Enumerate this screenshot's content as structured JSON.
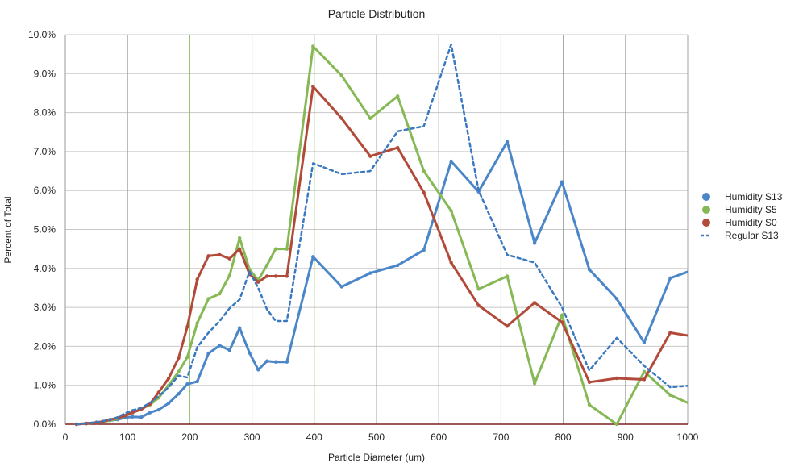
{
  "chart_data": {
    "type": "line",
    "title": "Particle Distribution",
    "xlabel": "Particle Diameter (um)",
    "ylabel": "Percent of Total",
    "xlim": [
      0,
      1000
    ],
    "ylim": [
      0,
      10
    ],
    "xticks": [
      "0",
      "100",
      "200",
      "300",
      "400",
      "500",
      "600",
      "700",
      "800",
      "900",
      "1000"
    ],
    "yticks": [
      "0.0%",
      "1.0%",
      "2.0%",
      "3.0%",
      "4.0%",
      "5.0%",
      "6.0%",
      "7.0%",
      "8.0%",
      "9.0%",
      "10.0%"
    ],
    "grid": true,
    "legend_position": "right",
    "series": [
      {
        "name": "Humidity S13",
        "color": "#4a86c8",
        "style": "solid",
        "x": [
          18,
          34,
          50,
          60,
          72,
          84,
          96,
          108,
          122,
          136,
          150,
          166,
          182,
          196,
          212,
          230,
          248,
          264,
          280,
          296,
          310,
          324,
          338,
          356,
          398,
          444,
          490,
          534,
          576,
          620,
          664,
          710,
          754,
          798,
          842,
          886,
          930,
          972,
          1010
        ],
        "y": [
          0.0,
          0.02,
          0.05,
          0.06,
          0.1,
          0.12,
          0.17,
          0.19,
          0.18,
          0.3,
          0.37,
          0.54,
          0.78,
          1.03,
          1.1,
          1.82,
          2.02,
          1.9,
          2.47,
          1.83,
          1.4,
          1.62,
          1.6,
          1.6,
          4.3,
          3.53,
          3.88,
          4.08,
          4.47,
          6.75,
          5.97,
          7.25,
          4.65,
          6.22,
          3.97,
          3.22,
          2.1,
          3.75,
          3.97
        ]
      },
      {
        "name": "Humidity S5",
        "color": "#86b955",
        "style": "solid",
        "x": [
          18,
          34,
          50,
          60,
          72,
          84,
          96,
          108,
          122,
          136,
          150,
          166,
          182,
          196,
          212,
          230,
          248,
          264,
          280,
          296,
          310,
          324,
          338,
          356,
          398,
          444,
          490,
          534,
          576,
          620,
          664,
          710,
          754,
          798,
          842,
          886,
          930,
          972,
          1010
        ],
        "y": [
          0.0,
          0.02,
          0.04,
          0.06,
          0.1,
          0.14,
          0.22,
          0.3,
          0.4,
          0.5,
          0.68,
          1.0,
          1.35,
          1.72,
          2.6,
          3.22,
          3.35,
          3.82,
          4.78,
          3.97,
          3.7,
          4.08,
          4.5,
          4.5,
          9.7,
          8.95,
          7.85,
          8.42,
          6.5,
          5.48,
          3.47,
          3.8,
          1.05,
          2.8,
          0.5,
          0.0,
          1.35,
          0.75,
          0.48
        ]
      },
      {
        "name": "Humidity S0",
        "color": "#b24a3a",
        "style": "solid",
        "x": [
          18,
          34,
          50,
          60,
          72,
          84,
          96,
          108,
          122,
          136,
          150,
          166,
          182,
          196,
          212,
          230,
          248,
          264,
          280,
          296,
          310,
          324,
          338,
          356,
          398,
          444,
          490,
          534,
          576,
          620,
          664,
          710,
          754,
          798,
          842,
          886,
          930,
          972,
          1010
        ],
        "y": [
          0.0,
          0.02,
          0.04,
          0.07,
          0.12,
          0.16,
          0.22,
          0.3,
          0.38,
          0.52,
          0.82,
          1.18,
          1.7,
          2.5,
          3.72,
          4.32,
          4.35,
          4.25,
          4.5,
          3.85,
          3.65,
          3.8,
          3.8,
          3.8,
          8.67,
          7.85,
          6.88,
          7.1,
          5.95,
          4.15,
          3.05,
          2.52,
          3.12,
          2.62,
          1.08,
          1.18,
          1.15,
          2.35,
          2.25
        ]
      },
      {
        "name": "Regular S13",
        "color": "#3a78c0",
        "style": "dashed",
        "x": [
          18,
          34,
          50,
          60,
          72,
          84,
          96,
          108,
          122,
          136,
          150,
          166,
          182,
          196,
          212,
          230,
          248,
          264,
          280,
          296,
          310,
          324,
          338,
          356,
          398,
          444,
          490,
          534,
          576,
          620,
          664,
          710,
          754,
          798,
          842,
          886,
          930,
          972,
          1010
        ],
        "y": [
          0.0,
          0.02,
          0.05,
          0.08,
          0.12,
          0.18,
          0.28,
          0.36,
          0.42,
          0.55,
          0.72,
          0.95,
          1.25,
          1.2,
          1.98,
          2.35,
          2.65,
          2.98,
          3.2,
          3.92,
          3.5,
          2.95,
          2.65,
          2.65,
          6.7,
          6.42,
          6.5,
          7.52,
          7.65,
          9.75,
          6.0,
          4.35,
          4.15,
          3.0,
          1.38,
          2.22,
          1.5,
          0.95,
          1.0
        ]
      }
    ]
  }
}
